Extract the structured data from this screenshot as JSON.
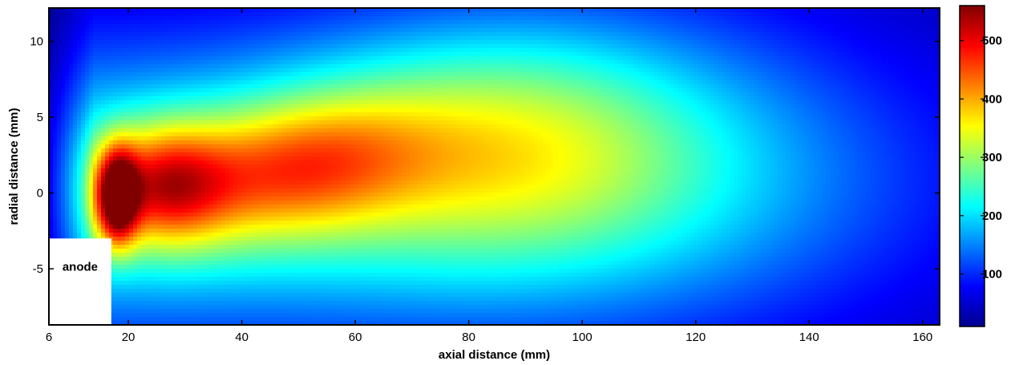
{
  "chart_data": {
    "type": "heatmap",
    "title": "",
    "xlabel": "axial distance (mm)",
    "ylabel": "radial distance (mm)",
    "xlim": [
      6,
      163
    ],
    "ylim": [
      -8.7,
      12.2
    ],
    "xticks": [
      6,
      20,
      40,
      60,
      80,
      100,
      120,
      140,
      160
    ],
    "yticks": [
      -5,
      0,
      5,
      10
    ],
    "colorbar": {
      "colormap": "jet",
      "range": [
        10,
        560
      ],
      "ticks": [
        100,
        200,
        300,
        400,
        500
      ],
      "position": "right"
    },
    "grid": false,
    "annotation": {
      "text": "anode",
      "x_range": [
        6,
        17
      ],
      "y_range": [
        -8.7,
        -3
      ]
    },
    "field_features": [
      {
        "feature": "peak",
        "x": 18,
        "y": -0.5,
        "value": 560
      },
      {
        "feature": "core",
        "x": 25,
        "y": 0.5,
        "value": 430
      },
      {
        "feature": "plume",
        "x": 50,
        "y": 2.5,
        "value": 370
      },
      {
        "feature": "plume",
        "x": 80,
        "y": 4,
        "value": 220
      },
      {
        "feature": "far field",
        "x": 140,
        "y": 0,
        "value": 100
      }
    ]
  }
}
